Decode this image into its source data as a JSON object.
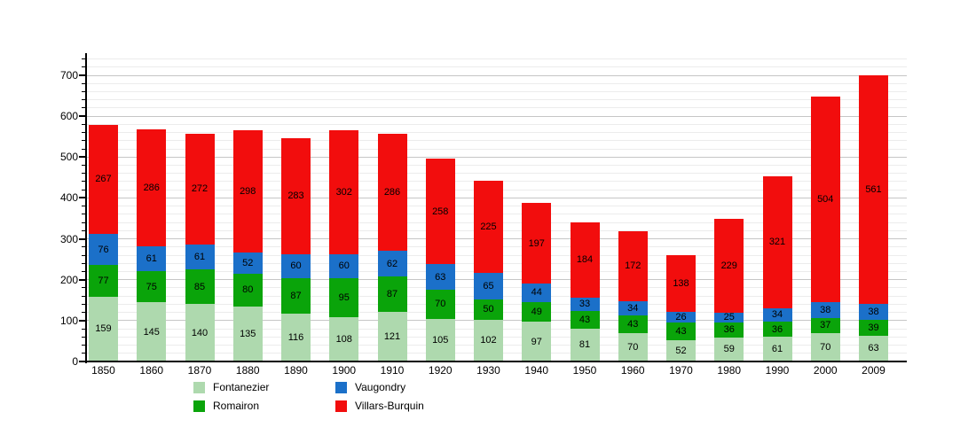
{
  "chart_data": {
    "type": "bar",
    "stacked": true,
    "title": "",
    "xlabel": "",
    "ylabel": "",
    "ylim": [
      0,
      700
    ],
    "y_major_tick_step": 100,
    "y_minor_tick_step": 20,
    "grid": "horizontal",
    "legend_position": "bottom",
    "value_labels": "inside-center",
    "categories": [
      "1850",
      "1860",
      "1870",
      "1880",
      "1890",
      "1900",
      "1910",
      "1920",
      "1930",
      "1940",
      "1950",
      "1960",
      "1970",
      "1980",
      "1990",
      "2000",
      "2009"
    ],
    "series": [
      {
        "name": "Fontanezier",
        "color": "#aed9ae",
        "values": [
          159,
          145,
          140,
          135,
          116,
          108,
          121,
          105,
          102,
          97,
          81,
          70,
          52,
          59,
          61,
          70,
          63
        ]
      },
      {
        "name": "Romairon",
        "color": "#0aa40a",
        "values": [
          77,
          75,
          85,
          80,
          87,
          95,
          87,
          70,
          50,
          49,
          43,
          43,
          43,
          36,
          36,
          37,
          39
        ]
      },
      {
        "name": "Vaugondry",
        "color": "#1b70c9",
        "values": [
          76,
          61,
          61,
          52,
          60,
          60,
          62,
          63,
          65,
          44,
          33,
          34,
          26,
          25,
          34,
          38,
          38
        ]
      },
      {
        "name": "Villars-Burquin",
        "color": "#f20d0d",
        "values": [
          267,
          286,
          272,
          298,
          283,
          302,
          286,
          258,
          225,
          197,
          184,
          172,
          138,
          229,
          321,
          504,
          561
        ]
      }
    ],
    "axis_color": "#000000",
    "gridline_minor_color": "#ececec",
    "gridline_major_color": "#c6c6c6"
  }
}
